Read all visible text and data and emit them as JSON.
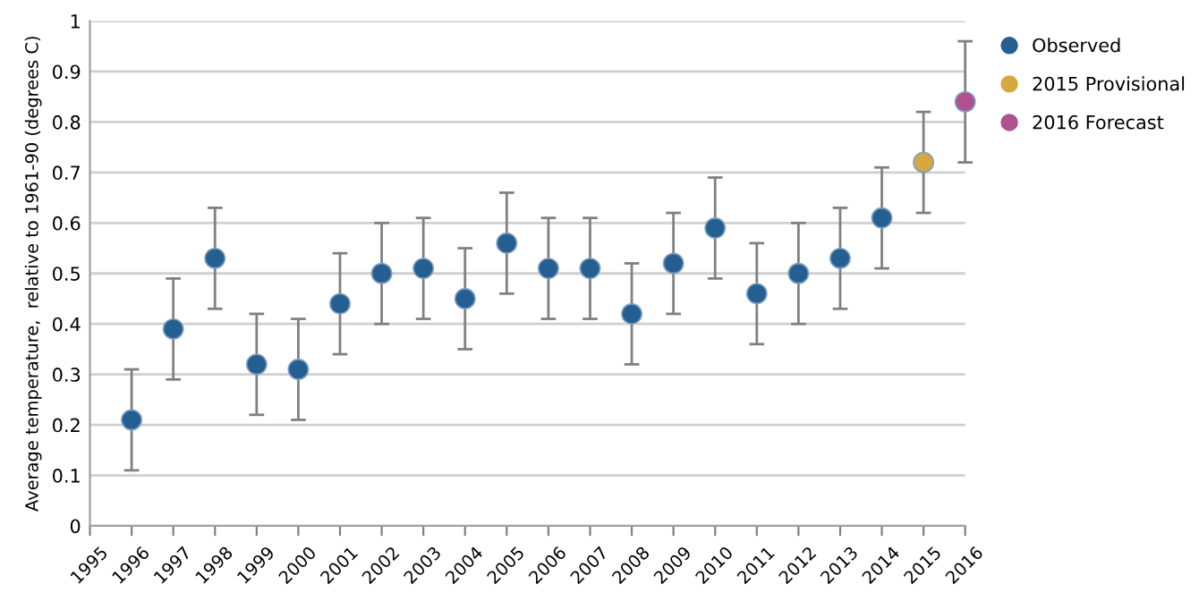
{
  "chart_data": {
    "type": "scatter",
    "ylabel": "Average temperature,  relative to 1961-90 (degrees C)",
    "xlim": [
      1995,
      2016
    ],
    "xticks": [
      1995,
      1996,
      1997,
      1998,
      1999,
      2000,
      2001,
      2002,
      2003,
      2004,
      2005,
      2006,
      2007,
      2008,
      2009,
      2010,
      2011,
      2012,
      2013,
      2014,
      2015,
      2016
    ],
    "ylim": [
      0,
      1
    ],
    "yticks": [
      0,
      0.1,
      0.2,
      0.3,
      0.4,
      0.5,
      0.6,
      0.7,
      0.8,
      0.9,
      1
    ],
    "grid": "y",
    "legend": "top right",
    "marker": "circle",
    "series": [
      {
        "name": "Observed",
        "color": "#255e91",
        "x": [
          1996,
          1997,
          1998,
          1999,
          2000,
          2001,
          2002,
          2003,
          2004,
          2005,
          2006,
          2007,
          2008,
          2009,
          2010,
          2011,
          2012,
          2013,
          2014
        ],
        "values": [
          0.21,
          0.39,
          0.53,
          0.32,
          0.31,
          0.44,
          0.5,
          0.51,
          0.45,
          0.56,
          0.51,
          0.51,
          0.42,
          0.52,
          0.59,
          0.46,
          0.5,
          0.53,
          0.61
        ],
        "errors": [
          0.1,
          0.1,
          0.1,
          0.1,
          0.1,
          0.1,
          0.1,
          0.1,
          0.1,
          0.1,
          0.1,
          0.1,
          0.1,
          0.1,
          0.1,
          0.1,
          0.1,
          0.1,
          0.1
        ]
      },
      {
        "name": "2015 Provisional",
        "color": "#d6a840",
        "x": [
          2015
        ],
        "values": [
          0.72
        ],
        "errors": [
          [
            0.62,
            0.82
          ]
        ]
      },
      {
        "name": "2016 Forecast",
        "color": "#b0518f",
        "x": [
          2016
        ],
        "values": [
          0.84
        ],
        "errors": [
          [
            0.72,
            0.96
          ]
        ]
      }
    ]
  }
}
